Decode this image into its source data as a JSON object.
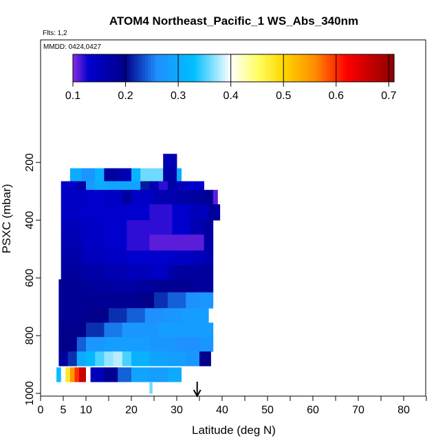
{
  "chart_data": {
    "type": "heatmap",
    "title": "ATOM4 Northeast_Pacific_1 WS_Abs_340nm",
    "flights_note": "Flts: 1,2",
    "dates_note": "MMDD: 0424,0427",
    "xlabel": "Latitude (deg N)",
    "ylabel": "PSXC (mbar)",
    "xlim": [
      0,
      85
    ],
    "ylim": [
      1000,
      0
    ],
    "x_ticks": [
      {
        "v": 0,
        "label": "0"
      },
      {
        "v": 5,
        "label": "5"
      },
      {
        "v": 10,
        "label": "10"
      },
      {
        "v": 20,
        "label": "20"
      },
      {
        "v": 30,
        "label": "30"
      },
      {
        "v": 40,
        "label": "40"
      },
      {
        "v": 50,
        "label": "50"
      },
      {
        "v": 60,
        "label": "60"
      },
      {
        "v": 70,
        "label": "70"
      },
      {
        "v": 80,
        "label": "80"
      }
    ],
    "x_minor_ticks": [
      15,
      25,
      35,
      45,
      55,
      65,
      75,
      85
    ],
    "y_ticks": [
      {
        "v": 200,
        "label": "200"
      },
      {
        "v": 400,
        "label": "400"
      },
      {
        "v": 600,
        "label": "600"
      },
      {
        "v": 800,
        "label": "800"
      },
      {
        "v": 1000,
        "label": "1000"
      }
    ],
    "colorbar": {
      "min": 0.1,
      "max": 0.71,
      "ticks": [
        {
          "v": 0.1,
          "label": "0.1"
        },
        {
          "v": 0.2,
          "label": "0.2"
        },
        {
          "v": 0.3,
          "label": "0.3"
        },
        {
          "v": 0.4,
          "label": "0.4"
        },
        {
          "v": 0.5,
          "label": "0.5"
        },
        {
          "v": 0.6,
          "label": "0.6"
        },
        {
          "v": 0.7,
          "label": "0.7"
        }
      ],
      "stops": [
        {
          "v": 0.1,
          "color": "#8a2be2"
        },
        {
          "v": 0.13,
          "color": "#0000cd"
        },
        {
          "v": 0.2,
          "color": "#00008b"
        },
        {
          "v": 0.26,
          "color": "#1e90ff"
        },
        {
          "v": 0.33,
          "color": "#00bfff"
        },
        {
          "v": 0.4,
          "color": "#ffffff"
        },
        {
          "v": 0.45,
          "color": "#ffff66"
        },
        {
          "v": 0.5,
          "color": "#ffd700"
        },
        {
          "v": 0.56,
          "color": "#ff8c00"
        },
        {
          "v": 0.62,
          "color": "#ff0000"
        },
        {
          "v": 0.71,
          "color": "#8b0000"
        }
      ]
    },
    "arrow_latitude": 34.5,
    "rows": [
      {
        "p0": 170,
        "p1": 220,
        "cells": [
          {
            "x0": 27,
            "x1": 30,
            "v": 0.16
          }
        ]
      },
      {
        "p0": 220,
        "p1": 265,
        "cells": [
          {
            "x0": 6.5,
            "x1": 9,
            "v": 0.3
          },
          {
            "x0": 9,
            "x1": 12,
            "v": 0.27
          },
          {
            "x0": 12,
            "x1": 14,
            "v": 0.31
          },
          {
            "x0": 14,
            "x1": 17,
            "v": 0.18
          },
          {
            "x0": 17,
            "x1": 20,
            "v": 0.16
          },
          {
            "x0": 20,
            "x1": 22,
            "v": 0.31
          },
          {
            "x0": 22,
            "x1": 27,
            "v": 0.36
          },
          {
            "x0": 27,
            "x1": 30,
            "v": 0.17
          },
          {
            "x0": 30,
            "x1": 31,
            "v": 0.3
          }
        ]
      },
      {
        "p0": 265,
        "p1": 295,
        "cells": [
          {
            "x0": 4.5,
            "x1": 8,
            "v": 0.14
          },
          {
            "x0": 8,
            "x1": 10,
            "v": 0.17
          },
          {
            "x0": 10,
            "x1": 12,
            "v": 0.28
          },
          {
            "x0": 12,
            "x1": 15,
            "v": 0.3
          },
          {
            "x0": 15,
            "x1": 22,
            "v": 0.29
          },
          {
            "x0": 22,
            "x1": 24,
            "v": 0.21
          },
          {
            "x0": 24,
            "x1": 26,
            "v": 0.16
          },
          {
            "x0": 26,
            "x1": 28,
            "v": 0.12
          },
          {
            "x0": 28,
            "x1": 30,
            "v": 0.17
          },
          {
            "x0": 30,
            "x1": 32,
            "v": 0.15
          },
          {
            "x0": 32,
            "x1": 36,
            "v": 0.13
          }
        ]
      },
      {
        "p0": 295,
        "p1": 345,
        "cells": [
          {
            "x0": 4.5,
            "x1": 10,
            "v": 0.14
          },
          {
            "x0": 10,
            "x1": 14,
            "v": 0.13
          },
          {
            "x0": 14,
            "x1": 18,
            "v": 0.14
          },
          {
            "x0": 18,
            "x1": 20,
            "v": 0.18
          },
          {
            "x0": 20,
            "x1": 25,
            "v": 0.14
          },
          {
            "x0": 25,
            "x1": 30,
            "v": 0.16
          },
          {
            "x0": 30,
            "x1": 33,
            "v": 0.17
          },
          {
            "x0": 33,
            "x1": 36,
            "v": 0.18
          },
          {
            "x0": 36,
            "x1": 38,
            "v": 0.19
          },
          {
            "x0": 38,
            "x1": 39,
            "v": 0.11
          }
        ]
      },
      {
        "p0": 345,
        "p1": 400,
        "cells": [
          {
            "x0": 4.5,
            "x1": 9,
            "v": 0.14
          },
          {
            "x0": 9,
            "x1": 14,
            "v": 0.13
          },
          {
            "x0": 14,
            "x1": 19,
            "v": 0.13
          },
          {
            "x0": 19,
            "x1": 24,
            "v": 0.13
          },
          {
            "x0": 24,
            "x1": 29,
            "v": 0.12
          },
          {
            "x0": 29,
            "x1": 33,
            "v": 0.13
          },
          {
            "x0": 33,
            "x1": 37,
            "v": 0.15
          },
          {
            "x0": 37,
            "x1": 39.5,
            "v": 0.18
          }
        ]
      },
      {
        "p0": 400,
        "p1": 450,
        "cells": [
          {
            "x0": 4.5,
            "x1": 9,
            "v": 0.15
          },
          {
            "x0": 9,
            "x1": 14,
            "v": 0.14
          },
          {
            "x0": 14,
            "x1": 19,
            "v": 0.13
          },
          {
            "x0": 19,
            "x1": 24,
            "v": 0.12
          },
          {
            "x0": 24,
            "x1": 29,
            "v": 0.12
          },
          {
            "x0": 29,
            "x1": 33,
            "v": 0.13
          },
          {
            "x0": 33,
            "x1": 36,
            "v": 0.16
          },
          {
            "x0": 36,
            "x1": 38,
            "v": 0.18
          }
        ]
      },
      {
        "p0": 450,
        "p1": 505,
        "cells": [
          {
            "x0": 4.5,
            "x1": 9,
            "v": 0.16
          },
          {
            "x0": 9,
            "x1": 14,
            "v": 0.14
          },
          {
            "x0": 14,
            "x1": 19,
            "v": 0.13
          },
          {
            "x0": 19,
            "x1": 24,
            "v": 0.12
          },
          {
            "x0": 24,
            "x1": 29,
            "v": 0.11
          },
          {
            "x0": 29,
            "x1": 33,
            "v": 0.11
          },
          {
            "x0": 33,
            "x1": 36,
            "v": 0.11
          },
          {
            "x0": 36,
            "x1": 38,
            "v": 0.17
          }
        ]
      },
      {
        "p0": 505,
        "p1": 555,
        "cells": [
          {
            "x0": 4.5,
            "x1": 9,
            "v": 0.17
          },
          {
            "x0": 9,
            "x1": 14,
            "v": 0.15
          },
          {
            "x0": 14,
            "x1": 19,
            "v": 0.14
          },
          {
            "x0": 19,
            "x1": 24,
            "v": 0.13
          },
          {
            "x0": 24,
            "x1": 29,
            "v": 0.13
          },
          {
            "x0": 29,
            "x1": 33,
            "v": 0.14
          },
          {
            "x0": 33,
            "x1": 36,
            "v": 0.15
          },
          {
            "x0": 36,
            "x1": 38,
            "v": 0.16
          }
        ]
      },
      {
        "p0": 555,
        "p1": 605,
        "cells": [
          {
            "x0": 4.5,
            "x1": 9,
            "v": 0.18
          },
          {
            "x0": 9,
            "x1": 14,
            "v": 0.17
          },
          {
            "x0": 14,
            "x1": 19,
            "v": 0.16
          },
          {
            "x0": 19,
            "x1": 24,
            "v": 0.15
          },
          {
            "x0": 24,
            "x1": 28,
            "v": 0.14
          },
          {
            "x0": 28,
            "x1": 30,
            "v": 0.17
          },
          {
            "x0": 30,
            "x1": 34,
            "v": 0.18
          },
          {
            "x0": 34,
            "x1": 38,
            "v": 0.18
          }
        ]
      },
      {
        "p0": 605,
        "p1": 650,
        "cells": [
          {
            "x0": 4,
            "x1": 10,
            "v": 0.19
          },
          {
            "x0": 10,
            "x1": 16,
            "v": 0.18
          },
          {
            "x0": 16,
            "x1": 21,
            "v": 0.17
          },
          {
            "x0": 21,
            "x1": 25,
            "v": 0.18
          },
          {
            "x0": 25,
            "x1": 30,
            "v": 0.19
          },
          {
            "x0": 30,
            "x1": 34,
            "v": 0.19
          },
          {
            "x0": 34,
            "x1": 38,
            "v": 0.18
          }
        ]
      },
      {
        "p0": 650,
        "p1": 705,
        "cells": [
          {
            "x0": 4,
            "x1": 10,
            "v": 0.19
          },
          {
            "x0": 10,
            "x1": 16,
            "v": 0.19
          },
          {
            "x0": 16,
            "x1": 21,
            "v": 0.19
          },
          {
            "x0": 21,
            "x1": 25,
            "v": 0.2
          },
          {
            "x0": 25,
            "x1": 28,
            "v": 0.22
          },
          {
            "x0": 28,
            "x1": 32,
            "v": 0.24
          },
          {
            "x0": 32,
            "x1": 35,
            "v": 0.26
          },
          {
            "x0": 35,
            "x1": 38,
            "v": 0.27
          }
        ]
      },
      {
        "p0": 705,
        "p1": 755,
        "cells": [
          {
            "x0": 4,
            "x1": 10,
            "v": 0.19
          },
          {
            "x0": 10,
            "x1": 15,
            "v": 0.2
          },
          {
            "x0": 15,
            "x1": 19,
            "v": 0.22
          },
          {
            "x0": 19,
            "x1": 23,
            "v": 0.24
          },
          {
            "x0": 23,
            "x1": 27,
            "v": 0.26
          },
          {
            "x0": 27,
            "x1": 31,
            "v": 0.27
          },
          {
            "x0": 31,
            "x1": 35,
            "v": 0.28
          },
          {
            "x0": 35,
            "x1": 37,
            "v": 0.28
          }
        ]
      },
      {
        "p0": 755,
        "p1": 805,
        "cells": [
          {
            "x0": 4,
            "x1": 10,
            "v": 0.2
          },
          {
            "x0": 10,
            "x1": 14,
            "v": 0.22
          },
          {
            "x0": 14,
            "x1": 18,
            "v": 0.25
          },
          {
            "x0": 18,
            "x1": 22,
            "v": 0.27
          },
          {
            "x0": 22,
            "x1": 26,
            "v": 0.27
          },
          {
            "x0": 26,
            "x1": 30,
            "v": 0.28
          },
          {
            "x0": 30,
            "x1": 34,
            "v": 0.28
          },
          {
            "x0": 34,
            "x1": 38,
            "v": 0.28
          }
        ]
      },
      {
        "p0": 805,
        "p1": 855,
        "cells": [
          {
            "x0": 4,
            "x1": 8,
            "v": 0.2
          },
          {
            "x0": 8,
            "x1": 10,
            "v": 0.24
          },
          {
            "x0": 10,
            "x1": 14,
            "v": 0.27
          },
          {
            "x0": 14,
            "x1": 18,
            "v": 0.28
          },
          {
            "x0": 18,
            "x1": 24,
            "v": 0.28
          },
          {
            "x0": 24,
            "x1": 30,
            "v": 0.27
          },
          {
            "x0": 30,
            "x1": 35,
            "v": 0.26
          },
          {
            "x0": 35,
            "x1": 38,
            "v": 0.27
          }
        ]
      },
      {
        "p0": 855,
        "p1": 905,
        "cells": [
          {
            "x0": 4,
            "x1": 6,
            "v": 0.18
          },
          {
            "x0": 6,
            "x1": 8,
            "v": 0.22
          },
          {
            "x0": 8,
            "x1": 10,
            "v": 0.3
          },
          {
            "x0": 10,
            "x1": 12,
            "v": 0.32
          },
          {
            "x0": 12,
            "x1": 14,
            "v": 0.35
          },
          {
            "x0": 14,
            "x1": 16,
            "v": 0.37
          },
          {
            "x0": 16,
            "x1": 18,
            "v": 0.38
          },
          {
            "x0": 18,
            "x1": 20,
            "v": 0.35
          },
          {
            "x0": 20,
            "x1": 24,
            "v": 0.31
          },
          {
            "x0": 24,
            "x1": 28,
            "v": 0.29
          },
          {
            "x0": 28,
            "x1": 32,
            "v": 0.28
          },
          {
            "x0": 32,
            "x1": 35,
            "v": 0.27
          },
          {
            "x0": 35,
            "x1": 37.5,
            "v": 0.2
          }
        ]
      },
      {
        "p0": 910,
        "p1": 960,
        "cells": [
          {
            "x0": 3.5,
            "x1": 4.5,
            "v": 0.33
          },
          {
            "x0": 4.5,
            "x1": 5.5,
            "v": 0.4
          },
          {
            "x0": 5.5,
            "x1": 6.5,
            "v": 0.48
          },
          {
            "x0": 6.5,
            "x1": 7.5,
            "v": 0.55
          },
          {
            "x0": 7.5,
            "x1": 8.5,
            "v": 0.6
          },
          {
            "x0": 8.5,
            "x1": 10,
            "v": 0.66
          },
          {
            "x0": 10,
            "x1": 11,
            "v": 0.4
          },
          {
            "x0": 11,
            "x1": 14,
            "v": 0.15
          },
          {
            "x0": 14,
            "x1": 17,
            "v": 0.19
          },
          {
            "x0": 17,
            "x1": 20,
            "v": 0.24
          },
          {
            "x0": 20,
            "x1": 24,
            "v": 0.29
          },
          {
            "x0": 24,
            "x1": 28,
            "v": 0.28
          },
          {
            "x0": 28,
            "x1": 31,
            "v": 0.3
          }
        ]
      },
      {
        "p0": 960,
        "p1": 1000,
        "cells": [
          {
            "x0": 24,
            "x1": 24.6,
            "v": 0.36
          }
        ]
      }
    ]
  }
}
